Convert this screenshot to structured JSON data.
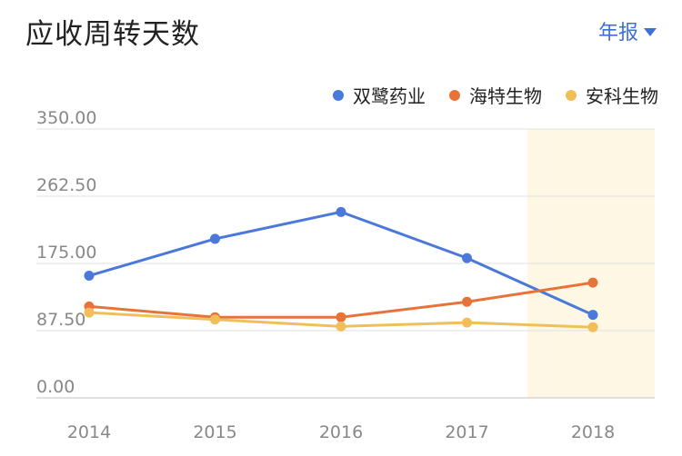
{
  "header": {
    "title": "应收周转天数",
    "period_label": "年报"
  },
  "colors": {
    "series": [
      "#4a78db",
      "#e8733a",
      "#f0bf5a"
    ],
    "highlight_band": "#fdf7e3",
    "gridline": "#e6e6e6",
    "axis_line": "#cfcfcf",
    "tick_text": "#888888"
  },
  "chart_data": {
    "type": "line",
    "title": "应收周转天数",
    "xlabel": "",
    "ylabel": "",
    "x": [
      "2014",
      "2015",
      "2016",
      "2017",
      "2018"
    ],
    "y_ticks": [
      "350.00",
      "262.50",
      "175.00",
      "87.50",
      "0.00"
    ],
    "ylim": [
      0,
      350
    ],
    "grid": true,
    "legend_position": "top-right",
    "highlighted_category": "2018",
    "series": [
      {
        "name": "双鹭药业",
        "values": [
          159,
          207,
          242,
          182,
          108
        ]
      },
      {
        "name": "海特生物",
        "values": [
          119,
          105,
          105,
          125,
          150
        ]
      },
      {
        "name": "安科生物",
        "values": [
          111,
          102,
          93,
          98,
          92
        ]
      }
    ]
  }
}
